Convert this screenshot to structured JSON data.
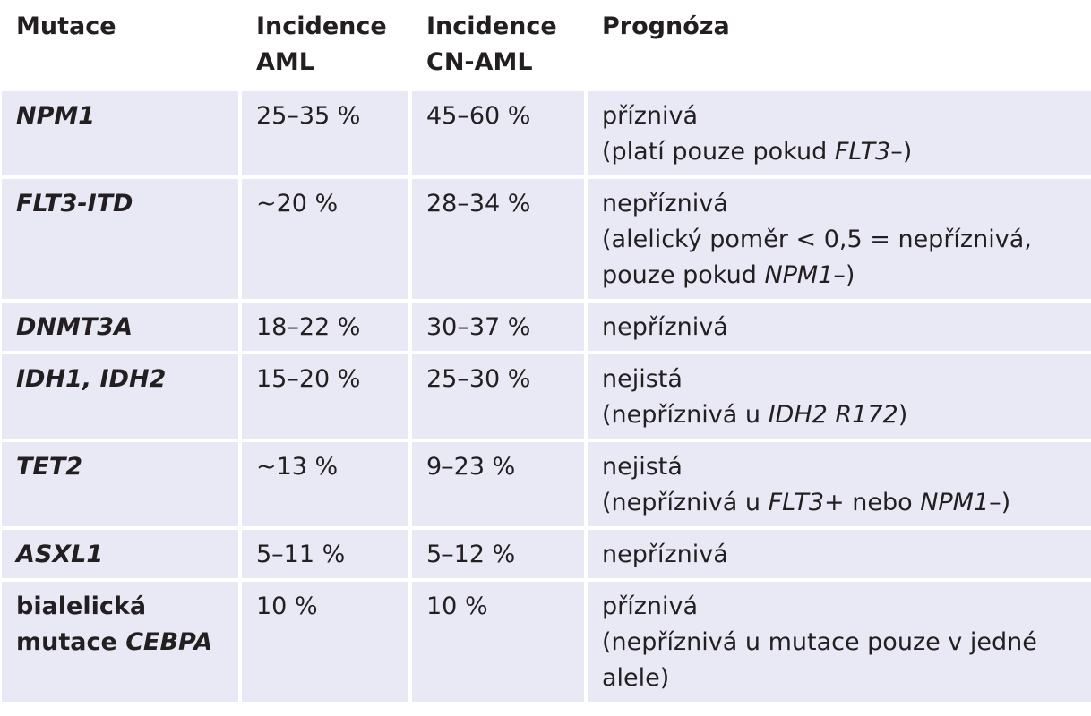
{
  "header": {
    "mutation": "Mutace",
    "aml_line1": "Incidence",
    "aml_line2": "AML",
    "cnaml_line1": "Incidence",
    "cnaml_line2": "CN-AML",
    "prognosis": "Prognóza"
  },
  "rows": [
    {
      "mutation": "NPM1",
      "aml": "25–35 %",
      "cnaml": "45–60 %",
      "prog_l1": "příznivá",
      "prog_l2_a": "(platí pouze pokud ",
      "prog_l2_b": "FLT3",
      "prog_l2_c": "–)"
    },
    {
      "mutation": "FLT3-ITD",
      "aml": "~20 %",
      "cnaml": "28–34 %",
      "prog_l1": "nepříznivá",
      "prog_l2": "(alelický poměr < 0,5 = nepříznivá,",
      "prog_l3_a": "pouze pokud ",
      "prog_l3_b": "NPM1",
      "prog_l3_c": "–)"
    },
    {
      "mutation": "DNMT3A",
      "aml": "18–22 %",
      "cnaml": "30–37 %",
      "prog_l1": "nepříznivá"
    },
    {
      "mutation": "IDH1, IDH2",
      "aml": "15–20 %",
      "cnaml": "25–30 %",
      "prog_l1": "nejistá",
      "prog_l2_a": "(nepříznivá u ",
      "prog_l2_b": "IDH2 R172",
      "prog_l2_c": ")"
    },
    {
      "mutation": "TET2",
      "aml": "~13 %",
      "cnaml": "9–23 %",
      "prog_l1": "nejistá",
      "prog_l2_a": "(nepříznivá u ",
      "prog_l2_b": "FLT3",
      "prog_l2_c": "+ nebo ",
      "prog_l2_d": "NPM1",
      "prog_l2_e": "–)"
    },
    {
      "mutation": "ASXL1",
      "aml": "5–11 %",
      "cnaml": "5–12 %",
      "prog_l1": "nepříznivá"
    },
    {
      "mutation_l1": "bialelická",
      "mutation_l2_a": "mutace ",
      "mutation_l2_b": "CEBPA",
      "aml": "10 %",
      "cnaml": "10 %",
      "prog_l1": "příznivá",
      "prog_l2": "(nepříznivá u mutace pouze v jedné",
      "prog_l3": "alele)"
    }
  ]
}
